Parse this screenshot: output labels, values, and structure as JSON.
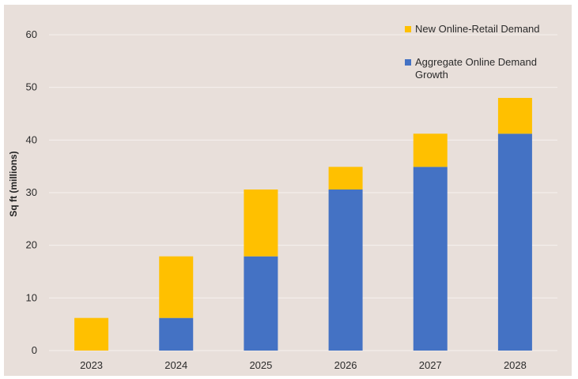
{
  "chart_data": {
    "type": "bar",
    "stacked": true,
    "title": "",
    "xlabel": "",
    "ylabel": "Sq ft (millions)",
    "ylim": [
      0,
      60
    ],
    "yticks": [
      0,
      10,
      20,
      30,
      40,
      50,
      60
    ],
    "categories": [
      "2023",
      "2024",
      "2025",
      "2026",
      "2027",
      "2028"
    ],
    "series": [
      {
        "name": "Aggregate Online Demand Growth",
        "color": "#4472c4",
        "values": [
          0,
          6.2,
          17.9,
          30.6,
          34.9,
          41.2
        ]
      },
      {
        "name": "New Online-Retail Demand",
        "color": "#ffc000",
        "values": [
          6.2,
          11.7,
          12.7,
          4.3,
          6.3,
          6.8
        ]
      }
    ],
    "grid": true,
    "legend": {
      "placement": "top-right",
      "entries": [
        {
          "label": "New Online-Retail Demand",
          "color": "#ffc000"
        },
        {
          "label_lines": [
            "Aggregate Online Demand",
            "Growth"
          ],
          "color": "#4472c4"
        }
      ]
    }
  }
}
